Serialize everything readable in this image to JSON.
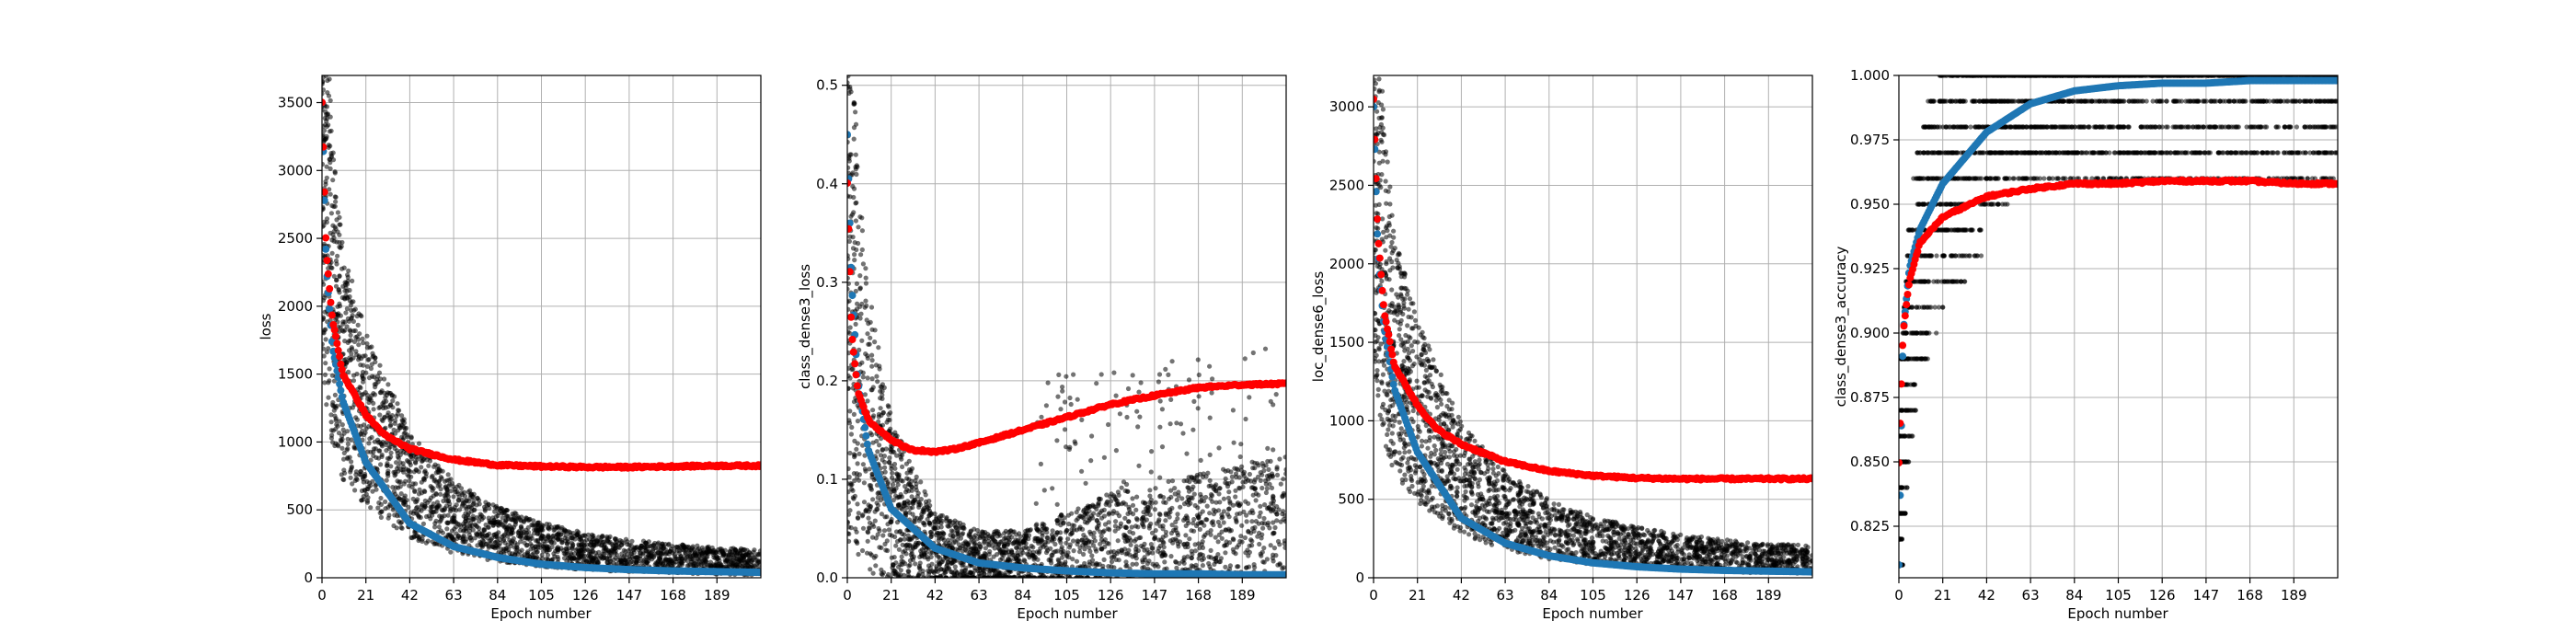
{
  "figure": {
    "background": "#ffffff"
  },
  "colors": {
    "batch_points": "#000000",
    "train_curve": "#1f77b4",
    "val_curve": "#ff0000",
    "grid": "#b0b0b0"
  },
  "chart_data": [
    {
      "type": "scatter",
      "xlabel": "Epoch number",
      "ylabel": "loss",
      "xlim": [
        0,
        210
      ],
      "ylim": [
        0,
        3700
      ],
      "xticks": [
        0,
        21,
        42,
        63,
        84,
        105,
        126,
        147,
        168,
        189
      ],
      "yticks": [
        0,
        500,
        1000,
        1500,
        2000,
        2500,
        3000,
        3500
      ],
      "grid": true,
      "series": [
        {
          "role": "batch",
          "x": [
            0,
            2,
            5,
            10,
            21,
            42,
            63,
            84,
            105,
            126,
            147,
            168,
            189,
            210
          ],
          "y": [
            3400,
            2600,
            2000,
            1500,
            1100,
            650,
            420,
            300,
            230,
            180,
            150,
            130,
            115,
            105
          ]
        },
        {
          "role": "train",
          "x": [
            0,
            2,
            5,
            10,
            21,
            42,
            63,
            84,
            105,
            126,
            147,
            168,
            189,
            210
          ],
          "y": [
            3500,
            2300,
            1700,
            1300,
            850,
            400,
            230,
            150,
            100,
            75,
            60,
            50,
            45,
            40
          ]
        },
        {
          "role": "validation",
          "x": [
            0,
            2,
            5,
            10,
            21,
            30,
            42,
            63,
            84,
            105,
            126,
            147,
            168,
            189,
            210
          ],
          "y": [
            3500,
            2400,
            1900,
            1500,
            1200,
            1050,
            950,
            870,
            830,
            820,
            815,
            815,
            820,
            825,
            825
          ]
        }
      ]
    },
    {
      "type": "scatter",
      "xlabel": "Epoch number",
      "ylabel": "class_dense3_loss",
      "xlim": [
        0,
        210
      ],
      "ylim": [
        0,
        0.51
      ],
      "xticks": [
        0,
        21,
        42,
        63,
        84,
        105,
        126,
        147,
        168,
        189
      ],
      "yticks": [
        0.0,
        0.1,
        0.2,
        0.3,
        0.4,
        0.5
      ],
      "ytick_decimals": 1,
      "grid": true,
      "series": [
        {
          "role": "batch",
          "x": [
            0,
            2,
            5,
            10,
            21,
            42,
            63,
            84,
            105,
            126,
            147,
            168,
            189,
            210
          ],
          "y": [
            0.45,
            0.3,
            0.22,
            0.15,
            0.08,
            0.03,
            0.02,
            0.02,
            0.03,
            0.04,
            0.045,
            0.05,
            0.055,
            0.06
          ]
        },
        {
          "role": "train",
          "x": [
            0,
            2,
            5,
            10,
            21,
            42,
            63,
            84,
            105,
            126,
            147,
            168,
            189,
            210
          ],
          "y": [
            0.45,
            0.3,
            0.2,
            0.13,
            0.07,
            0.03,
            0.015,
            0.01,
            0.007,
            0.005,
            0.004,
            0.004,
            0.003,
            0.003
          ]
        },
        {
          "role": "validation",
          "x": [
            0,
            2,
            5,
            10,
            21,
            30,
            42,
            50,
            63,
            84,
            105,
            126,
            147,
            168,
            189,
            210
          ],
          "y": [
            0.4,
            0.25,
            0.19,
            0.16,
            0.14,
            0.13,
            0.128,
            0.13,
            0.137,
            0.15,
            0.163,
            0.176,
            0.185,
            0.193,
            0.196,
            0.197
          ]
        }
      ]
    },
    {
      "type": "scatter",
      "xlabel": "Epoch number",
      "ylabel": "loc_dense6_loss",
      "xlim": [
        0,
        210
      ],
      "ylim": [
        0,
        3200
      ],
      "xticks": [
        0,
        21,
        42,
        63,
        84,
        105,
        126,
        147,
        168,
        189
      ],
      "yticks": [
        0,
        500,
        1000,
        1500,
        2000,
        2500,
        3000
      ],
      "grid": true,
      "series": [
        {
          "role": "batch",
          "x": [
            0,
            2,
            5,
            10,
            21,
            42,
            63,
            84,
            105,
            126,
            147,
            168,
            189,
            210
          ],
          "y": [
            2900,
            2300,
            1800,
            1350,
            1000,
            600,
            400,
            290,
            220,
            180,
            150,
            130,
            115,
            105
          ]
        },
        {
          "role": "train",
          "x": [
            0,
            2,
            5,
            10,
            21,
            42,
            63,
            84,
            105,
            126,
            147,
            168,
            189,
            210
          ],
          "y": [
            3000,
            2100,
            1600,
            1200,
            800,
            380,
            220,
            140,
            95,
            70,
            55,
            47,
            42,
            38
          ]
        },
        {
          "role": "validation",
          "x": [
            0,
            2,
            5,
            10,
            21,
            30,
            42,
            63,
            84,
            105,
            126,
            147,
            168,
            189,
            210
          ],
          "y": [
            3050,
            2200,
            1700,
            1350,
            1100,
            950,
            850,
            740,
            680,
            650,
            635,
            630,
            630,
            630,
            630
          ]
        }
      ]
    },
    {
      "type": "scatter",
      "xlabel": "Epoch number",
      "ylabel": "class_dense3_accuracy",
      "xlim": [
        0,
        210
      ],
      "ylim": [
        0.805,
        1.0
      ],
      "xticks": [
        0,
        21,
        42,
        63,
        84,
        105,
        126,
        147,
        168,
        189
      ],
      "yticks": [
        0.825,
        0.85,
        0.875,
        0.9,
        0.925,
        0.95,
        0.975,
        1.0
      ],
      "ytick_decimals": 3,
      "grid": true,
      "series": [
        {
          "role": "batch",
          "x": [
            0,
            5,
            10,
            21,
            42,
            63,
            84,
            105,
            126,
            147,
            168,
            189,
            210
          ],
          "y": [
            0.83,
            0.9,
            0.93,
            0.96,
            0.98,
            0.99,
            0.99,
            0.99,
            0.99,
            0.99,
            0.99,
            0.99,
            0.99
          ]
        },
        {
          "role": "train",
          "x": [
            0,
            2,
            5,
            10,
            21,
            42,
            63,
            84,
            105,
            126,
            147,
            168,
            189,
            210
          ],
          "y": [
            0.81,
            0.9,
            0.925,
            0.94,
            0.958,
            0.978,
            0.989,
            0.994,
            0.996,
            0.997,
            0.997,
            0.998,
            0.998,
            0.998
          ]
        },
        {
          "role": "validation",
          "x": [
            0,
            2,
            5,
            10,
            21,
            42,
            63,
            84,
            105,
            126,
            147,
            168,
            189,
            210
          ],
          "y": [
            0.85,
            0.9,
            0.92,
            0.935,
            0.945,
            0.953,
            0.956,
            0.958,
            0.958,
            0.959,
            0.959,
            0.959,
            0.958,
            0.958
          ]
        }
      ]
    }
  ]
}
